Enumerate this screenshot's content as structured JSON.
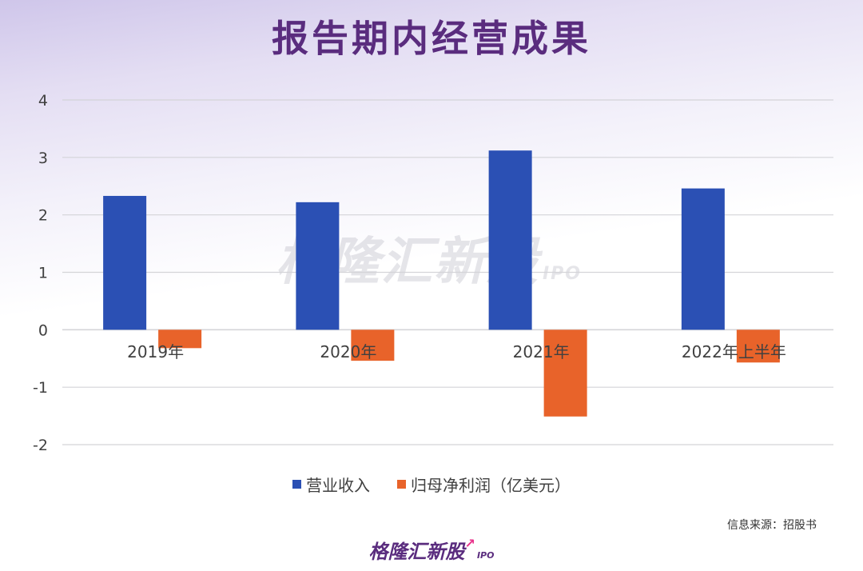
{
  "title": "报告期内经营成果",
  "colors": {
    "revenue": "#2b50b4",
    "profit": "#e8632a",
    "title": "#5a2c7e",
    "grid": "#d4d4d8",
    "tick_text": "#404040"
  },
  "chart_data": {
    "type": "bar",
    "categories": [
      "2019年",
      "2020年",
      "2021年",
      "2022年上半年"
    ],
    "series": [
      {
        "name": "营业收入",
        "values": [
          2.33,
          2.22,
          3.12,
          2.46
        ]
      },
      {
        "name": "归母净利润（亿美元）",
        "values": [
          -0.32,
          -0.54,
          -1.51,
          -0.57
        ]
      }
    ],
    "ylim": [
      -2,
      4
    ],
    "yticks": [
      "-2",
      "-1",
      "0",
      "1",
      "2",
      "3",
      "4"
    ],
    "grid": true,
    "legend_position": "bottom"
  },
  "watermark": {
    "text": "格隆汇新股",
    "sub": "IPO"
  },
  "source": "信息来源：招股书",
  "footer": {
    "logo_text": "格隆汇新股",
    "logo_sub": "IPO"
  }
}
